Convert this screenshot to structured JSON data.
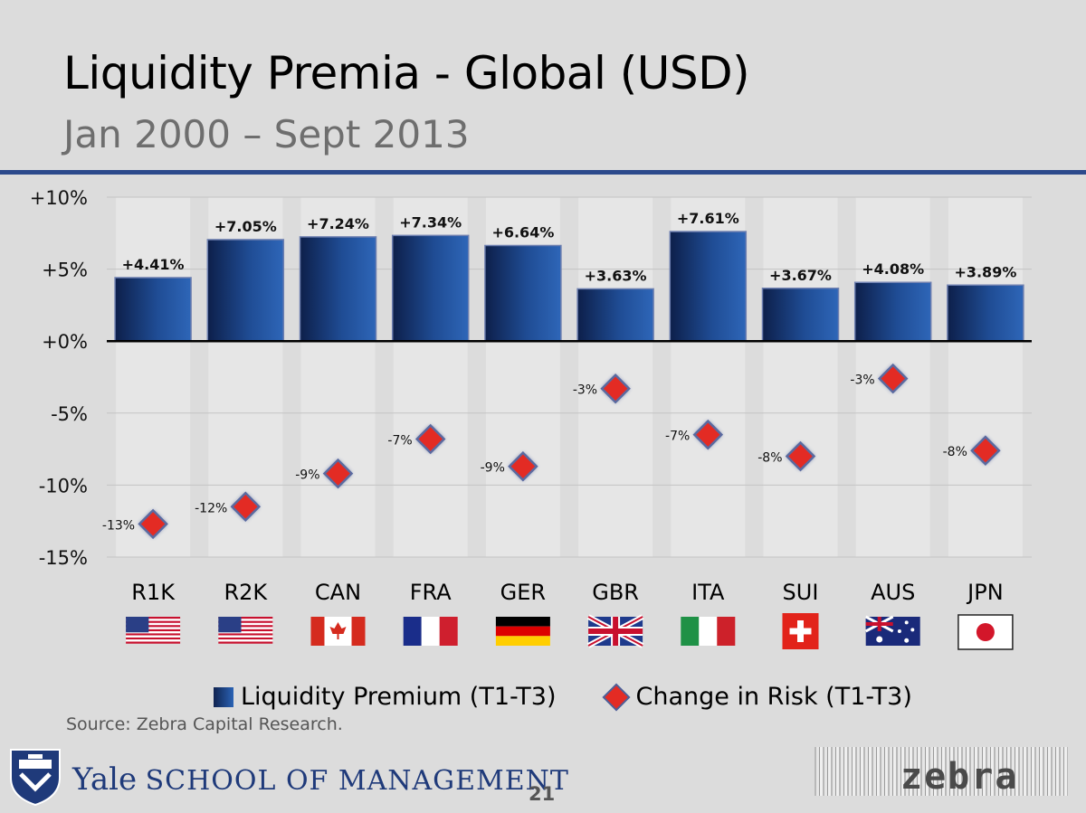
{
  "header": {
    "title": "Liquidity Premia - Global (USD)",
    "subtitle": "Jan 2000 – Sept 2013"
  },
  "chart_data": {
    "type": "bar",
    "title": "Liquidity Premia - Global (USD)",
    "subtitle": "Jan 2000 – Sept 2013",
    "categories": [
      "R1K",
      "R2K",
      "CAN",
      "FRA",
      "GER",
      "GBR",
      "ITA",
      "SUI",
      "AUS",
      "JPN"
    ],
    "ylim": [
      -15,
      10
    ],
    "yticks": [
      10,
      5,
      0,
      -5,
      -10,
      -15
    ],
    "ytick_labels": [
      "+10%",
      "+5%",
      "+0%",
      "-5%",
      "-10%",
      "-15%"
    ],
    "series": [
      {
        "name": "Liquidity Premium (T1-T3)",
        "type": "bar",
        "values": [
          4.41,
          7.05,
          7.24,
          7.34,
          6.64,
          3.63,
          7.61,
          3.67,
          4.08,
          3.89
        ],
        "labels": [
          "+4.41%",
          "+7.05%",
          "+7.24%",
          "+7.34%",
          "+6.64%",
          "+3.63%",
          "+7.61%",
          "+3.67%",
          "+4.08%",
          "+3.89%"
        ],
        "color": "#1f4f9a"
      },
      {
        "name": "Change in Risk (T1-T3)",
        "type": "scatter",
        "marker": "diamond",
        "values": [
          -12.7,
          -11.5,
          -9.2,
          -6.8,
          -8.7,
          -3.3,
          -6.5,
          -8.0,
          -2.6,
          -7.6
        ],
        "labels": [
          "-13%",
          "-12%",
          "-9%",
          "-7%",
          "-9%",
          "-3%",
          "-7%",
          "-8%",
          "-3%",
          "-8%"
        ],
        "color": "#e32b24"
      }
    ],
    "flags": [
      "usa",
      "usa",
      "canada",
      "france",
      "germany",
      "uk",
      "italy",
      "switzerland",
      "australia",
      "japan"
    ],
    "legend_position": "bottom"
  },
  "source": "Source: Zebra Capital Research.",
  "footer": {
    "yale_initial": "Y",
    "yale_rest": "ale",
    "school": "SCHOOL OF MANAGEMENT",
    "page_number": "21",
    "zebra_logo": "zebra"
  }
}
